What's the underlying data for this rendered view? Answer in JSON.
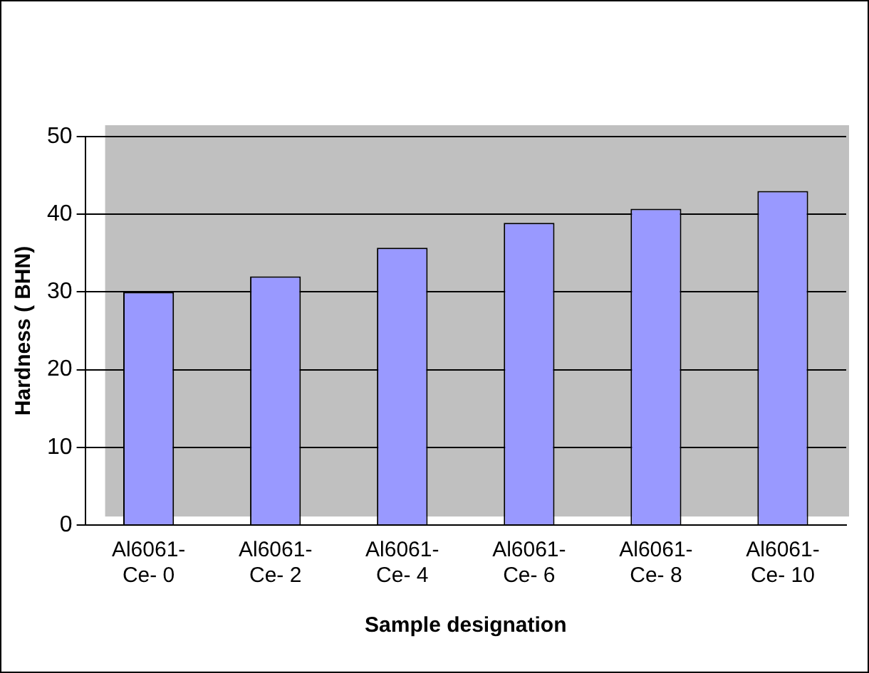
{
  "chart_data": {
    "type": "bar",
    "xlabel": "Sample designation",
    "ylabel": "Hardness ( BHN)",
    "categories": [
      "Al6061- Ce- 0",
      "Al6061- Ce- 2",
      "Al6061- Ce- 4",
      "Al6061- Ce- 6",
      "Al6061- Ce- 8",
      "Al6061- Ce- 10"
    ],
    "values": [
      30,
      32,
      35.7,
      38.9,
      40.7,
      43
    ],
    "color": "#9999ff",
    "ylim": [
      0,
      50
    ],
    "yticks": [
      0,
      10,
      20,
      30,
      40,
      50
    ],
    "grid": "y"
  }
}
